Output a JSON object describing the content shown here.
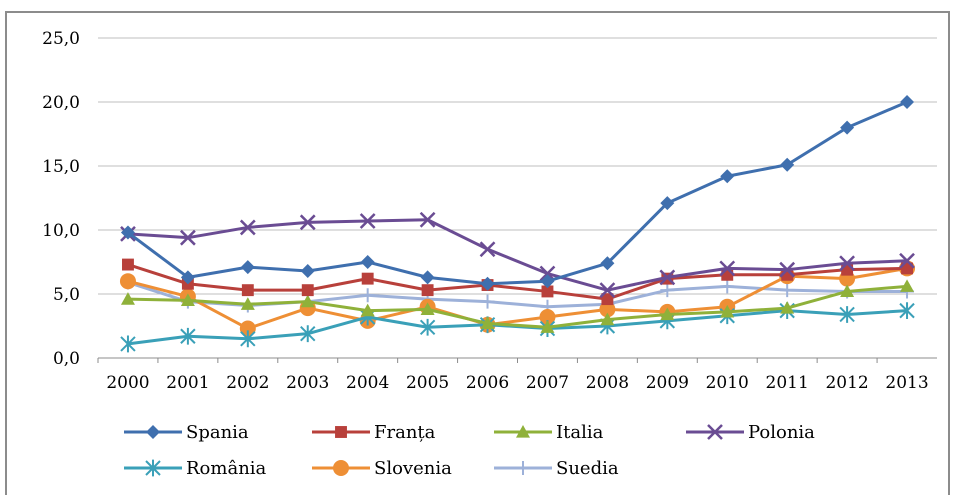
{
  "chart_data": {
    "type": "line",
    "title": "",
    "xlabel": "",
    "ylabel": "",
    "categories": [
      "2000",
      "2001",
      "2002",
      "2003",
      "2004",
      "2005",
      "2006",
      "2007",
      "2008",
      "2009",
      "2010",
      "2011",
      "2012",
      "2013"
    ],
    "ylim": [
      0,
      25
    ],
    "yticks": [
      "0,0",
      "5,0",
      "10,0",
      "15,0",
      "20,0",
      "25,0"
    ],
    "grid": true,
    "legend_position": "bottom",
    "series": [
      {
        "name": "Spania",
        "color": "#3f6fae",
        "marker": "diamond",
        "values": [
          9.8,
          6.3,
          7.1,
          6.8,
          7.5,
          6.3,
          5.8,
          6.0,
          7.4,
          12.1,
          14.2,
          15.1,
          18.0,
          20.0
        ]
      },
      {
        "name": "Franța",
        "color": "#b8403b",
        "marker": "square",
        "values": [
          7.3,
          5.8,
          5.3,
          5.3,
          6.2,
          5.3,
          5.7,
          5.2,
          4.6,
          6.2,
          6.5,
          6.5,
          6.9,
          7.0
        ]
      },
      {
        "name": "Italia",
        "color": "#8fb13a",
        "marker": "triangle",
        "values": [
          4.6,
          4.5,
          4.2,
          4.4,
          3.7,
          3.8,
          2.7,
          2.4,
          3.0,
          3.4,
          3.6,
          3.9,
          5.2,
          5.6
        ]
      },
      {
        "name": "Polonia",
        "color": "#6a4c93",
        "marker": "x",
        "values": [
          9.7,
          9.4,
          10.2,
          10.6,
          10.7,
          10.8,
          8.5,
          6.6,
          5.3,
          6.3,
          7.0,
          6.9,
          7.4,
          7.6
        ]
      },
      {
        "name": "România",
        "color": "#3aa0b8",
        "marker": "asterisk",
        "values": [
          1.1,
          1.7,
          1.5,
          1.9,
          3.2,
          2.4,
          2.6,
          2.3,
          2.5,
          2.9,
          3.3,
          3.7,
          3.4,
          3.7
        ]
      },
      {
        "name": "Slovenia",
        "color": "#ee8f35",
        "marker": "circle",
        "values": [
          6.0,
          4.8,
          2.3,
          3.9,
          2.9,
          4.0,
          2.6,
          3.2,
          3.8,
          3.6,
          4.0,
          6.4,
          6.2,
          7.0
        ]
      },
      {
        "name": "Suedia",
        "color": "#9db1d9",
        "marker": "plus",
        "values": [
          5.9,
          4.4,
          4.1,
          4.4,
          4.9,
          4.6,
          4.4,
          4.0,
          4.2,
          5.3,
          5.6,
          5.3,
          5.2,
          5.2
        ]
      }
    ]
  }
}
